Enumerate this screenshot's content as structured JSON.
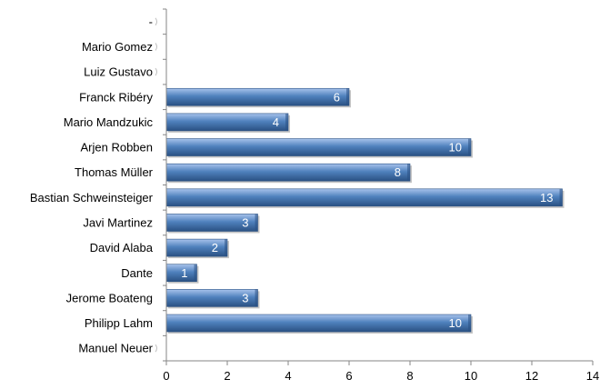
{
  "chart_data": {
    "type": "bar",
    "orientation": "horizontal",
    "categories": [
      "-",
      "Mario Gomez",
      "Luiz Gustavo",
      "Franck Ribéry",
      "Mario Mandzukic",
      "Arjen Robben",
      "Thomas Müller",
      "Bastian Schweinsteiger",
      "Javi Martinez",
      "David Alaba",
      "Dante",
      "Jerome Boateng",
      "Philipp Lahm",
      "Manuel Neuer"
    ],
    "values": [
      null,
      null,
      null,
      6,
      4,
      10,
      8,
      13,
      3,
      2,
      1,
      3,
      10,
      null
    ],
    "data_labels": [
      "",
      "",
      "",
      "6",
      "4",
      "10",
      "8",
      "13",
      "3",
      "2",
      "1",
      "3",
      "10",
      ""
    ],
    "xlim": [
      0,
      14
    ],
    "xticks": [
      "0",
      "2",
      "4",
      "6",
      "8",
      "10",
      "12",
      "14"
    ],
    "title": "",
    "xlabel": "",
    "ylabel": "",
    "grid": false,
    "legend": "none",
    "bar_color": "#4f81bd",
    "bar_color_dark": "#2a5183",
    "bar_color_light": "#a8c3ec"
  }
}
